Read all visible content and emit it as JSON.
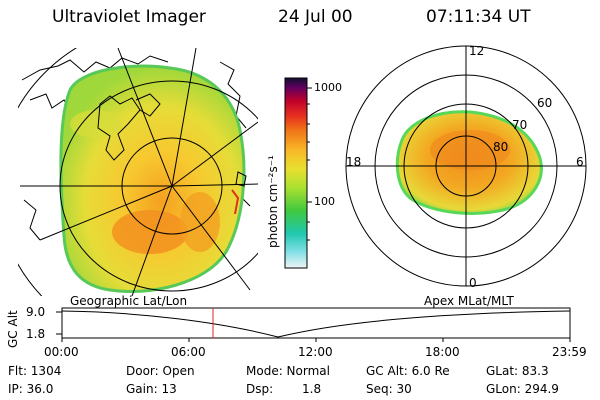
{
  "header": {
    "instrument": "Ultraviolet Imager",
    "date": "24 Jul 00",
    "time": "07:11:34 UT"
  },
  "colorbar": {
    "tick_high": "1000",
    "tick_mid": "100",
    "unit_label": "photon cm⁻²s⁻¹",
    "colors": [
      "#101030",
      "#600060",
      "#c0002a",
      "#e83020",
      "#f07818",
      "#f8b828",
      "#e8e030",
      "#a8e030",
      "#40c840",
      "#20c8b0",
      "#88e0e8",
      "#e8f4f4"
    ]
  },
  "polar_plot": {
    "labels": {
      "top": "12",
      "left": "18",
      "right": "6",
      "bottom": "0",
      "ring60": "60",
      "ring70": "70",
      "ring80": "80"
    }
  },
  "timeline": {
    "left_label": "Geographic Lat/Lon",
    "right_label": "Apex MLat/MLT",
    "axis_label": "GC Alt",
    "y_max": "9.0",
    "y_min": "1.8",
    "ticks": [
      "00:00",
      "06:00",
      "12:00",
      "18:00",
      "23:59"
    ],
    "marker_time": "07:11:34",
    "curve_color": "#000000",
    "marker_color": "#e02020"
  },
  "info": {
    "flt": "Flt: 1304",
    "ip": "IP: 36.0",
    "door": "Door: Open",
    "gain": "Gain: 13",
    "mode": "Mode: Normal",
    "dsp_label": "Dsp:",
    "dsp_value": "1.8",
    "gcalt": "GC Alt: 6.0 Re",
    "seq": "Seq: 30",
    "glat": "GLat:  83.3",
    "glon": "GLon: 294.9"
  }
}
